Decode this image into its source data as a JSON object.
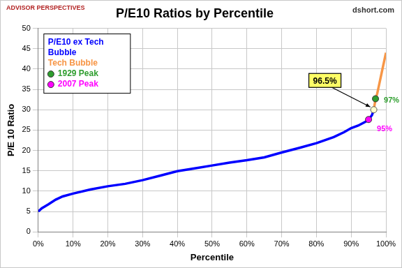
{
  "chart_data": {
    "type": "line",
    "title": "P/E10 Ratios by Percentile",
    "logo": "ADVISOR PERSPECTIVES",
    "source": "dshort.com",
    "x_label": "Percentile",
    "y_label": "P/E 10 Ratio",
    "xlim": [
      0,
      100
    ],
    "xticks": [
      {
        "value": 0,
        "label": "0%"
      },
      {
        "value": 10,
        "label": "10%"
      },
      {
        "value": 20,
        "label": "20%"
      },
      {
        "value": 30,
        "label": "30%"
      },
      {
        "value": 40,
        "label": "40%"
      },
      {
        "value": 50,
        "label": "50%"
      },
      {
        "value": 60,
        "label": "60%"
      },
      {
        "value": 70,
        "label": "70%"
      },
      {
        "value": 80,
        "label": "80%"
      },
      {
        "value": 90,
        "label": "90%"
      },
      {
        "value": 100,
        "label": "100%"
      }
    ],
    "ylim": [
      0,
      50
    ],
    "yticks": [
      0,
      5,
      10,
      15,
      20,
      25,
      30,
      35,
      40,
      45,
      50
    ],
    "grid": true,
    "legend": "upper left",
    "series": [
      {
        "name": "P/E10 ex Tech Bubble",
        "color": "#0000ff",
        "type": "line",
        "x": [
          0,
          1,
          2,
          3,
          5,
          7,
          10,
          15,
          20,
          25,
          30,
          35,
          40,
          45,
          50,
          55,
          60,
          65,
          70,
          75,
          80,
          85,
          88,
          90,
          92,
          94,
          95,
          96,
          96.5
        ],
        "values": [
          5,
          5.8,
          6.3,
          6.8,
          7.9,
          8.7,
          9.4,
          10.4,
          11.2,
          11.8,
          12.7,
          13.8,
          14.9,
          15.6,
          16.3,
          17,
          17.6,
          18.3,
          19.5,
          20.6,
          21.8,
          23.3,
          24.5,
          25.5,
          26.1,
          27,
          27.5,
          28.7,
          30
        ]
      },
      {
        "name": "Tech Bubble",
        "color": "#f79646",
        "type": "line",
        "x": [
          96.5,
          97,
          97.5,
          98,
          98.5,
          99,
          99.5,
          100
        ],
        "values": [
          30,
          32.6,
          34,
          36,
          38,
          40,
          42,
          44
        ]
      },
      {
        "name": "1929 Peak",
        "color": "#2e9e2e",
        "type": "scatter",
        "marker": "circle",
        "x": [
          97
        ],
        "values": [
          32.7
        ]
      },
      {
        "name": "2007 Peak",
        "color": "#ff00ff",
        "type": "scatter",
        "marker": "circle",
        "x": [
          95
        ],
        "values": [
          27.6
        ]
      }
    ],
    "annotations": [
      {
        "text": "96.5%",
        "x": 96.5,
        "y": 30
      },
      {
        "text": "97%",
        "x": 97,
        "y": 32.7,
        "color": "#2e9e2e"
      },
      {
        "text": "95%",
        "x": 95,
        "y": 27.6,
        "color": "#ff00ff"
      }
    ]
  }
}
